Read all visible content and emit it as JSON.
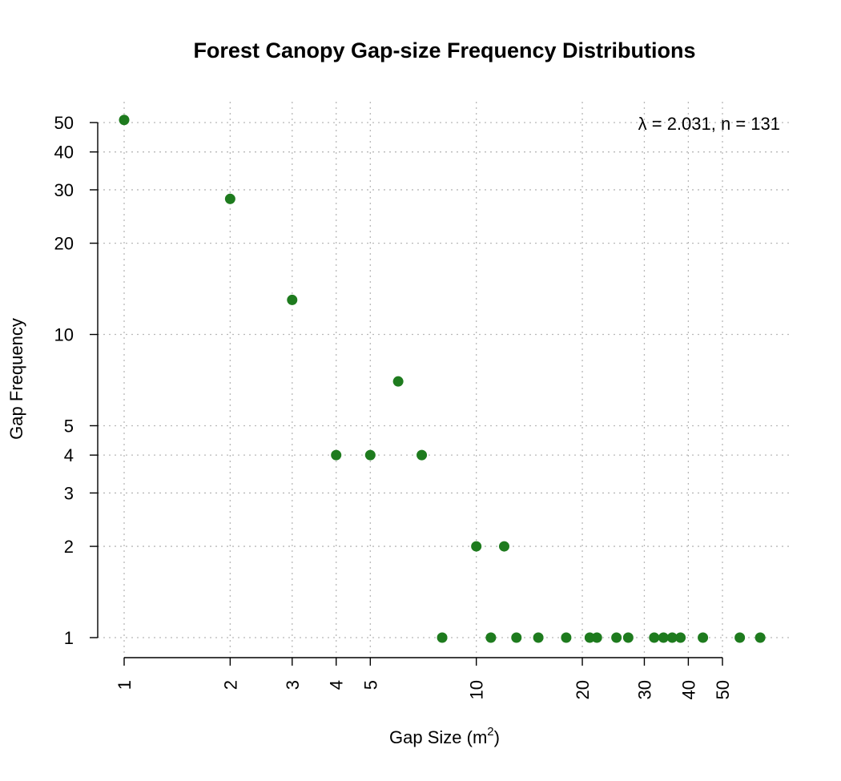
{
  "chart_data": {
    "type": "scatter",
    "title": "Forest Canopy Gap-size Frequency Distributions",
    "xlabel": {
      "base": "Gap Size (m",
      "sup": "2",
      "tail": ")"
    },
    "ylabel": "Gap Frequency",
    "x_scale": "log",
    "y_scale": "log",
    "xlim": [
      1,
      70
    ],
    "ylim": [
      1,
      50
    ],
    "x_ticks": [
      1,
      2,
      3,
      4,
      5,
      10,
      20,
      30,
      40,
      50
    ],
    "y_ticks": [
      1,
      2,
      3,
      4,
      5,
      10,
      20,
      30,
      40,
      50
    ],
    "grid": true,
    "annotation": "λ = 2.031,  n = 131",
    "annotation_placement": "top-right",
    "point_color": "#1e7b1e",
    "x": [
      1,
      2,
      3,
      4,
      5,
      6,
      7,
      8,
      10,
      11,
      12,
      13,
      15,
      18,
      21,
      22,
      25,
      27,
      32,
      34,
      36,
      38,
      44,
      56,
      64
    ],
    "y": [
      51,
      28,
      13,
      4,
      4,
      7,
      4,
      1,
      2,
      1,
      2,
      1,
      1,
      1,
      1,
      1,
      1,
      1,
      1,
      1,
      1,
      1,
      1,
      1,
      1
    ]
  }
}
